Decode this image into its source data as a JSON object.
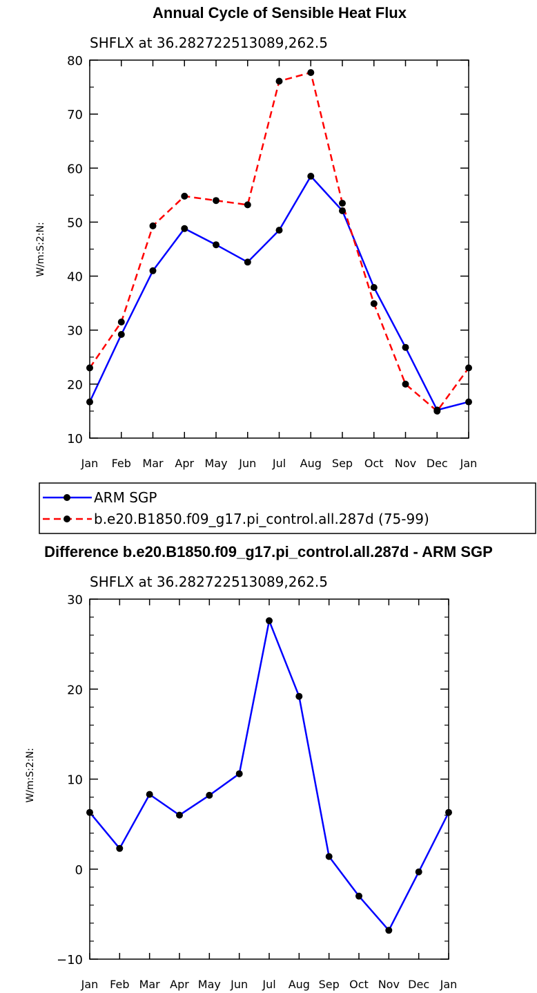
{
  "chart_data": [
    {
      "type": "line",
      "title": "Annual Cycle of Sensible Heat Flux",
      "subtitle": "SHFLX at 36.282722513089,262.5",
      "ylabel": "W/m:S:2:N:",
      "xlabel": "",
      "categories": [
        "Jan",
        "Feb",
        "Mar",
        "Apr",
        "May",
        "Jun",
        "Jul",
        "Aug",
        "Sep",
        "Oct",
        "Nov",
        "Dec",
        "Jan"
      ],
      "ylim": [
        10,
        80
      ],
      "yticks": [
        10,
        20,
        30,
        40,
        50,
        60,
        70,
        80
      ],
      "series": [
        {
          "name": "ARM SGP",
          "color": "#0000ff",
          "dash": "solid",
          "values": [
            16.7,
            29.2,
            41.0,
            48.8,
            45.8,
            42.6,
            48.5,
            58.5,
            52.1,
            37.9,
            26.8,
            15.2,
            16.7
          ]
        },
        {
          "name": "b.e20.B1850.f09_g17.pi_control.all.287d (75-99)",
          "color": "#ff0000",
          "dash": "dashed",
          "values": [
            23.0,
            31.5,
            49.3,
            54.8,
            54.0,
            53.2,
            76.1,
            77.7,
            53.5,
            34.9,
            20.0,
            15.0,
            23.0
          ]
        }
      ],
      "legend": [
        "ARM SGP",
        "b.e20.B1850.f09_g17.pi_control.all.287d (75-99)"
      ]
    },
    {
      "type": "line",
      "title": "Difference b.e20.B1850.f09_g17.pi_control.all.287d - ARM SGP",
      "subtitle": "SHFLX at 36.282722513089,262.5",
      "ylabel": "W/m:S:2:N:",
      "xlabel": "",
      "categories": [
        "Jan",
        "Feb",
        "Mar",
        "Apr",
        "May",
        "Jun",
        "Jul",
        "Aug",
        "Sep",
        "Oct",
        "Nov",
        "Dec",
        "Jan"
      ],
      "ylim": [
        -10,
        30
      ],
      "yticks": [
        -10,
        0,
        10,
        20,
        30
      ],
      "ytick_labels": [
        "−10",
        "0",
        "10",
        "20",
        "30"
      ],
      "series": [
        {
          "name": "Difference",
          "color": "#0000ff",
          "dash": "solid",
          "values": [
            6.3,
            2.3,
            8.3,
            6.0,
            8.2,
            10.6,
            27.6,
            19.2,
            1.4,
            -3.0,
            -6.8,
            -0.3,
            6.3
          ]
        }
      ]
    }
  ]
}
